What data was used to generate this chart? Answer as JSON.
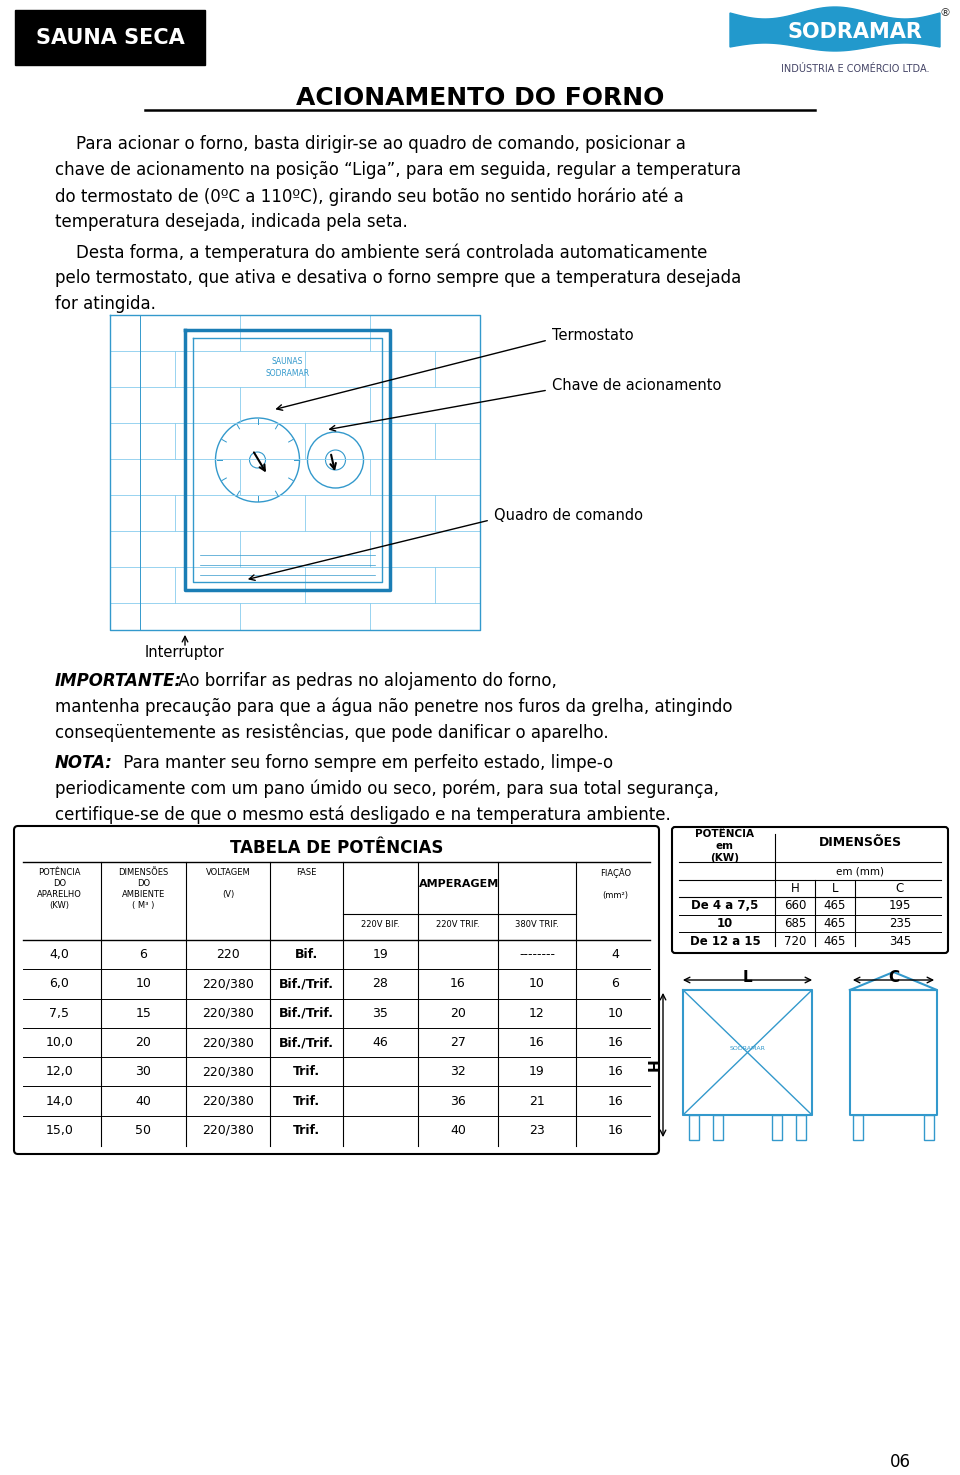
{
  "bg_color": "#ffffff",
  "title_header": "ACIONAMENTO DO FORNO",
  "para1_lines": [
    "    Para acionar o forno, basta dirigir-se ao quadro de comando, posicionar a",
    "chave de acionamento na posição “Liga”, para em seguida, regular a temperatura",
    "do termostato de (0ºC a 110ºC), girando seu botão no sentido horário até a",
    "temperatura desejada, indicada pela seta."
  ],
  "para2_lines": [
    "    Desta forma, a temperatura do ambiente será controlada automaticamente",
    "pelo termostato, que ativa e desativa o forno sempre que a temperatura desejada",
    "for atingida."
  ],
  "label_termostato": "Termostato",
  "label_chave": "Chave de acionamento",
  "label_quadro": "Quadro de comando",
  "label_interruptor": "Interruptor",
  "importante_label": "IMPORTANTE:",
  "importante_lines": [
    " Ao borrifar as pedras no alojamento do forno,",
    "mantenha precaução para que a água não penetre nos furos da grelha, atingindo",
    "conseqüentemente as resistências, que pode danificar o aparelho."
  ],
  "nota_label": "NOTA:",
  "nota_lines": [
    " Para manter seu forno sempre em perfeito estado, limpe-o",
    "periodicamente com um pano úmido ou seco, porém, para sua total segurança,",
    "certifique-se de que o mesmo está desligado e na temperatura ambiente."
  ],
  "table_title": "TABELA DE POTÊNCIAS",
  "table_headers_amp": [
    "220V BIF.",
    "220V TRIF.",
    "380V TRIF."
  ],
  "table_data": [
    [
      "4,0",
      "6",
      "220",
      "Bif.",
      "19",
      "",
      "--------",
      "4"
    ],
    [
      "6,0",
      "10",
      "220/380",
      "Bif./Trif.",
      "28",
      "16",
      "10",
      "6"
    ],
    [
      "7,5",
      "15",
      "220/380",
      "Bif./Trif.",
      "35",
      "20",
      "12",
      "10"
    ],
    [
      "10,0",
      "20",
      "220/380",
      "Bif./Trif.",
      "46",
      "27",
      "16",
      "16"
    ],
    [
      "12,0",
      "30",
      "220/380",
      "Trif.",
      "",
      "32",
      "19",
      "16"
    ],
    [
      "14,0",
      "40",
      "220/380",
      "Trif.",
      "",
      "36",
      "21",
      "16"
    ],
    [
      "15,0",
      "50",
      "220/380",
      "Trif.",
      "",
      "40",
      "23",
      "16"
    ]
  ],
  "dim_table_data": [
    [
      "De 4 a 7,5",
      "660",
      "465",
      "195"
    ],
    [
      "10",
      "685",
      "465",
      "235"
    ],
    [
      "De 12 a 15",
      "720",
      "465",
      "345"
    ]
  ],
  "page_num": "06",
  "sauna_seca_label": "SAUNA SECA",
  "sodramar_text": "INDÚSTRIA E COMÉRCIO LTDA.",
  "blue": "#3399cc",
  "dblue": "#1a7db5",
  "lblue": "#88ccee"
}
